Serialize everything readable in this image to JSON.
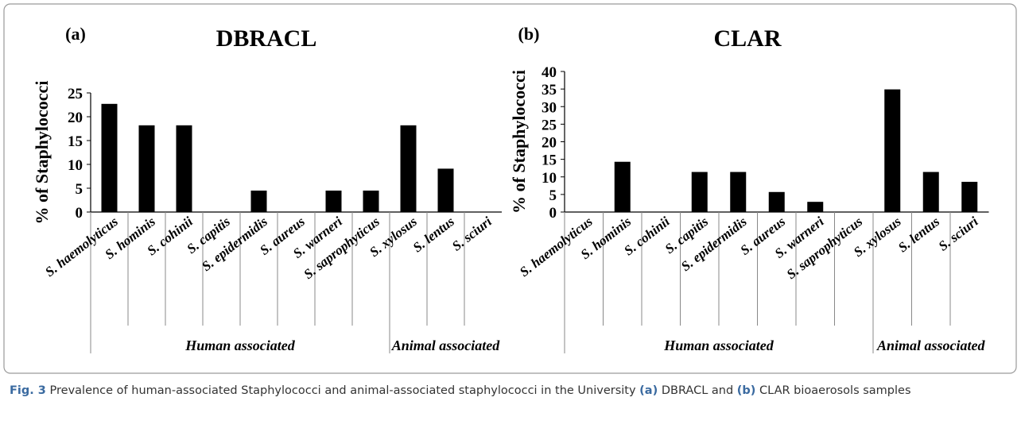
{
  "chart_data": [
    {
      "type": "bar",
      "panel_label": "(a)",
      "title": "DBRACL",
      "y_label": "% of Staphylococci",
      "color": "#000000",
      "groups": [
        {
          "label": "Human associated",
          "categories": [
            "S. haemolyticus",
            "S. hominis",
            "S. cohinii",
            "S. capitis",
            "S. epidermidis",
            "S. aureus",
            "S. warneri",
            "S. saprophyticus"
          ]
        },
        {
          "label": "Animal associated",
          "categories": [
            "S. xylosus",
            "S. lentus",
            "S. sciuri"
          ]
        }
      ],
      "values": [
        22.7,
        18.2,
        18.2,
        0,
        4.5,
        0,
        4.5,
        4.5,
        18.2,
        9.1,
        0
      ],
      "ylim": [
        0,
        25
      ],
      "yticks": [
        0,
        5,
        10,
        15,
        20,
        25
      ]
    },
    {
      "type": "bar",
      "panel_label": "(b)",
      "title": "CLAR",
      "y_label": "% of Staphylococci",
      "color": "#000000",
      "groups": [
        {
          "label": "Human associated",
          "categories": [
            "S. haemolyticus",
            "S. hominis",
            "S. cohinii",
            "S. capitis",
            "S. epidermidis",
            "S. aureus",
            "S. warneri",
            "S. saprophyticus"
          ]
        },
        {
          "label": "Animal associated",
          "categories": [
            "S. xylosus",
            "S. lentus",
            "S. sciuri"
          ]
        }
      ],
      "values": [
        0,
        14.3,
        0,
        11.4,
        11.4,
        5.7,
        2.9,
        0,
        34.9,
        11.4,
        8.6
      ],
      "ylim": [
        0,
        40
      ],
      "yticks": [
        0,
        5,
        10,
        15,
        20,
        25,
        30,
        35,
        40
      ]
    }
  ],
  "caption": [
    {
      "text": "Fig. 3",
      "bold": true
    },
    {
      "text": " Prevalence of human-associated Staphylococci and animal-associated staphylococci in the University ",
      "bold": false
    },
    {
      "text": "(a)",
      "bold": true
    },
    {
      "text": " DBRACL and ",
      "bold": false
    },
    {
      "text": "(b)",
      "bold": true
    },
    {
      "text": " CLAR bioaerosols samples",
      "bold": false
    }
  ]
}
